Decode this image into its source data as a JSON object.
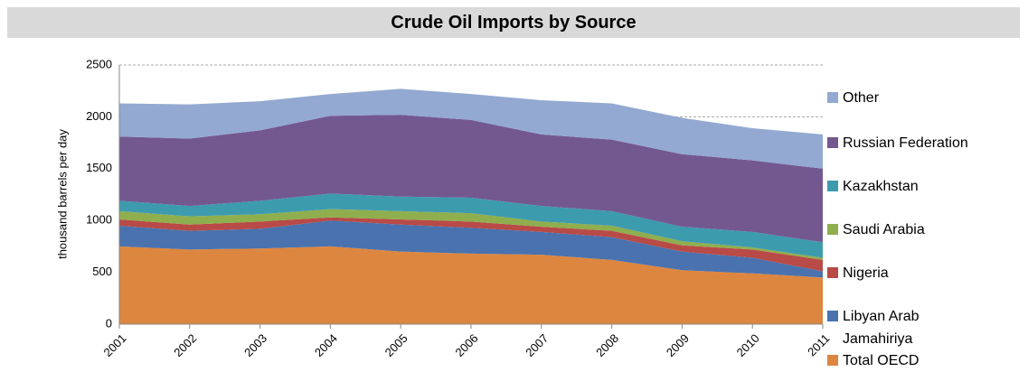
{
  "chart_data": {
    "type": "stacked_area",
    "title": "Crude Oil Imports by Source",
    "y_label": "thousand barrels per day",
    "categories": [
      "2001",
      "2002",
      "2003",
      "2004",
      "2005",
      "2006",
      "2007",
      "2008",
      "2009",
      "2010",
      "2011"
    ],
    "series": [
      {
        "name": "Total OECD",
        "color": "#dd8640",
        "values": [
          750,
          720,
          730,
          750,
          700,
          680,
          670,
          620,
          520,
          490,
          450
        ]
      },
      {
        "name": "Libyan Arab Jamahiriya",
        "color": "#4a72ae",
        "values": [
          200,
          180,
          190,
          250,
          260,
          250,
          220,
          220,
          180,
          150,
          60
        ]
      },
      {
        "name": "Nigeria",
        "color": "#b84a47",
        "values": [
          60,
          60,
          70,
          30,
          50,
          60,
          50,
          60,
          60,
          80,
          110
        ]
      },
      {
        "name": "Saudi Arabia",
        "color": "#8fae4e",
        "values": [
          80,
          80,
          70,
          80,
          80,
          80,
          50,
          50,
          40,
          20,
          20
        ]
      },
      {
        "name": "Kazakhstan",
        "color": "#3d9bae",
        "values": [
          100,
          100,
          130,
          150,
          140,
          150,
          150,
          140,
          140,
          150,
          150
        ]
      },
      {
        "name": "Russian Federation",
        "color": "#735890",
        "values": [
          620,
          650,
          680,
          750,
          790,
          750,
          690,
          690,
          700,
          690,
          710
        ]
      },
      {
        "name": "Other",
        "color": "#93a9d1",
        "values": [
          320,
          330,
          280,
          210,
          250,
          250,
          330,
          350,
          350,
          310,
          330
        ]
      }
    ],
    "ylim": [
      0,
      2500
    ],
    "yticks": [
      0,
      500,
      1000,
      1500,
      2000,
      2500
    ],
    "grid": true,
    "legend": "right"
  }
}
